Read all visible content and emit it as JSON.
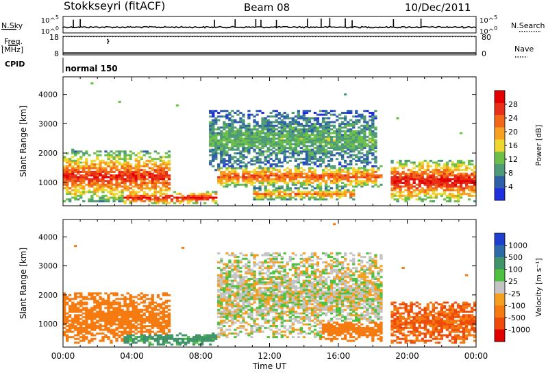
{
  "header": {
    "station": "Stokkseyri (fitACF)",
    "beam": "Beam 08",
    "date": "10/Dec/2011"
  },
  "left_labels": {
    "nsky": "N.Sky",
    "freq": "Freq.",
    "freq_unit": "[MHz]",
    "cpid": "CPID"
  },
  "right_labels": {
    "nsearch": "N.Search",
    "nave": "Nave"
  },
  "mode_label": "normal 150",
  "colors": {
    "power": [
      "#1f2fe0",
      "#2f5fa8",
      "#4f9a78",
      "#6cc04a",
      "#eed830",
      "#f7a020",
      "#f26818",
      "#e83018",
      "#e40000"
    ],
    "velocity": [
      "#1f3fd0",
      "#2f6aa8",
      "#3f9468",
      "#4fc040",
      "#c4c4c4",
      "#f59f20",
      "#f57a10",
      "#ee4a0a",
      "#e00000"
    ]
  },
  "chart_data": [
    {
      "type": "line",
      "title": "N.Sky / N.Search",
      "ylabel": "N.Sky",
      "y2label": "N.Search",
      "yticks_left": [
        "10^5",
        "10^0"
      ],
      "yticks_right": [
        "10^5",
        "10^0"
      ],
      "baseline_fraction": 0.35,
      "spike_hours": [
        0.6,
        1.0,
        8.8,
        10.0,
        11.2,
        11.5,
        12.4,
        14.2,
        15.0,
        15.5,
        16.4,
        16.8,
        19.2,
        20.8
      ]
    },
    {
      "type": "line",
      "title": "Freq / Nave",
      "ylabel": "Freq. [MHz]",
      "y2label": "Nave",
      "yticks_left": [
        "18",
        "8"
      ],
      "yticks_right": [
        "80",
        "0"
      ],
      "ylim": [
        8,
        18
      ],
      "freq_mhz": 9.0,
      "dotted_level_mhz": 17.8,
      "outlier": {
        "hour": 2.6,
        "mhz": 15.5
      }
    },
    {
      "type": "heatmap",
      "quantity": "Power",
      "ylabel": "Slant Range [km]",
      "cbar_label": "Power [dB]",
      "cbar_ticks": [
        "4",
        "8",
        "12",
        "16",
        "20",
        "24",
        "28"
      ],
      "yticks": [
        "1000",
        "2000",
        "3000",
        "4000"
      ],
      "ylim": [
        200,
        4600
      ],
      "xlim_hours": [
        0,
        24
      ],
      "xticks": [
        "00:00",
        "04:00",
        "08:00",
        "12:00",
        "16:00",
        "20:00",
        "00:00"
      ],
      "echo_bands": [
        {
          "t0": 0.0,
          "t1": 6.2,
          "r0": 300,
          "r1": 2100,
          "peak_db": 26
        },
        {
          "t0": 3.5,
          "t1": 9.0,
          "r0": 250,
          "r1": 700,
          "peak_db": 28
        },
        {
          "t0": 9.0,
          "t1": 18.5,
          "r0": 800,
          "r1": 1600,
          "peak_db": 24
        },
        {
          "t0": 11.0,
          "t1": 17.0,
          "r0": 400,
          "r1": 800,
          "peak_db": 22
        },
        {
          "t0": 8.5,
          "t1": 18.3,
          "r0": 1400,
          "r1": 3500,
          "peak_db": 12
        },
        {
          "t0": 19.0,
          "t1": 24.0,
          "r0": 300,
          "r1": 1800,
          "peak_db": 28
        }
      ]
    },
    {
      "type": "heatmap",
      "quantity": "Velocity",
      "ylabel": "Slant Range [km]",
      "xlabel": "Time UT",
      "cbar_label": "Velocity [m s⁻¹]",
      "cbar_ticks": [
        "1000",
        "500",
        "100",
        "25",
        "-25",
        "-100",
        "-500",
        "-1000"
      ],
      "yticks": [
        "1000",
        "2000",
        "3000",
        "4000"
      ],
      "ylim": [
        200,
        4600
      ],
      "xlim_hours": [
        0,
        24
      ],
      "xticks": [
        "00:00",
        "04:00",
        "08:00",
        "12:00",
        "16:00",
        "20:00",
        "00:00"
      ],
      "echo_bands": [
        {
          "t0": 0.0,
          "t1": 6.2,
          "r0": 300,
          "r1": 2100,
          "velocity": -150
        },
        {
          "t0": 3.5,
          "t1": 9.0,
          "r0": 250,
          "r1": 700,
          "velocity": 100
        },
        {
          "t0": 9.0,
          "t1": 18.5,
          "r0": 500,
          "r1": 3500,
          "velocity": 0
        },
        {
          "t0": 15.0,
          "t1": 18.5,
          "r0": 400,
          "r1": 1200,
          "velocity": -200
        },
        {
          "t0": 19.0,
          "t1": 24.0,
          "r0": 300,
          "r1": 1800,
          "velocity": -300
        }
      ]
    }
  ]
}
